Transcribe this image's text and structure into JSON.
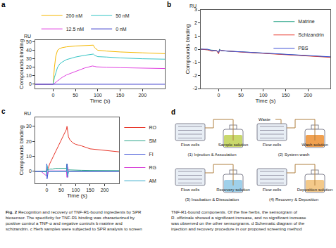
{
  "chart_data": [
    {
      "label": "a",
      "type": "line",
      "y_unit": "RU",
      "x_label": "Time (s)",
      "y_label": "Compounds binding",
      "x": [
        -40,
        -20,
        -2,
        0,
        3,
        6,
        10,
        15,
        20,
        30,
        50,
        70,
        88,
        90,
        93,
        97,
        100,
        120,
        150,
        200,
        250
      ],
      "series": [
        {
          "name": "200 nM",
          "color": "#f5b800",
          "values": [
            0,
            0,
            0,
            0,
            20,
            33,
            40,
            42,
            43,
            44,
            45,
            45.5,
            46,
            46,
            43,
            41,
            40,
            39,
            38,
            37,
            36
          ]
        },
        {
          "name": "50 nM",
          "color": "#33c4c4",
          "values": [
            0,
            0,
            0,
            0,
            8,
            14,
            20,
            24,
            26,
            29,
            32,
            34,
            35.5,
            35.5,
            34,
            33,
            32.5,
            32,
            31,
            30,
            29.5
          ]
        },
        {
          "name": "12.5 nM",
          "color": "#e040e0",
          "values": [
            0,
            0,
            0,
            0,
            1,
            2,
            4,
            6,
            8,
            11,
            15,
            19,
            21.5,
            21.5,
            21,
            20.5,
            20.5,
            20,
            19.5,
            19,
            18.5
          ]
        },
        {
          "name": "0 nM",
          "color": "#3b3bcc",
          "values": [
            0,
            0,
            0,
            0,
            0.3,
            0.3,
            0.5,
            0.5,
            0.5,
            0.5,
            0.5,
            0.5,
            0.5,
            0.5,
            0,
            0,
            0,
            0,
            0,
            0,
            0
          ]
        }
      ],
      "xlim": [
        -40,
        250
      ],
      "xticks": [
        0,
        50,
        100,
        150,
        200
      ],
      "ylim": [
        -5,
        52
      ],
      "yticks": [
        0,
        10,
        20,
        30,
        40,
        50
      ],
      "legend": "top"
    },
    {
      "label": "b",
      "type": "line",
      "y_unit": "RU",
      "x_label": "Time (s)",
      "y_label": "Compounds binding",
      "x": [
        -40,
        -25,
        -15,
        -5,
        0,
        2,
        5,
        20,
        50,
        100,
        150,
        200,
        250
      ],
      "series": [
        {
          "name": "Matrine",
          "color": "#2aa58a",
          "values": [
            0,
            -0.05,
            -0.1,
            -0.1,
            -0.3,
            0,
            -0.1,
            -0.15,
            -0.2,
            -0.3,
            -0.4,
            -0.5,
            -0.6
          ]
        },
        {
          "name": "Schizandrin",
          "color": "#e8362a",
          "values": [
            0,
            -0.05,
            -0.15,
            -0.1,
            -0.35,
            -0.05,
            -0.1,
            -0.15,
            -0.22,
            -0.32,
            -0.42,
            -0.52,
            -0.62
          ]
        },
        {
          "name": "PBS",
          "color": "#3b4fd6",
          "values": [
            0,
            0,
            -0.1,
            -0.1,
            -0.25,
            -0.05,
            -0.1,
            -0.15,
            -0.2,
            -0.3,
            -0.4,
            -0.48,
            -0.58
          ]
        }
      ],
      "xlim": [
        -40,
        250
      ],
      "xticks": [
        0,
        50,
        100,
        150,
        200
      ],
      "ylim": [
        -3,
        3
      ],
      "yticks": [
        -3,
        -2,
        -1,
        0,
        1,
        2,
        3
      ],
      "legend": "upper right"
    },
    {
      "label": "c",
      "type": "line",
      "y_unit": "RU",
      "x_label": "Time (s)",
      "y_label": "Compounds binding",
      "x": [
        -40,
        -20,
        -1,
        0,
        1,
        5,
        10,
        20,
        30,
        40,
        50,
        60,
        68,
        70,
        72,
        75,
        80,
        90,
        100,
        120,
        150,
        200,
        250
      ],
      "series": [
        {
          "name": "RO",
          "color": "#e8362a",
          "values": [
            0,
            0,
            0,
            0,
            0.5,
            2,
            5,
            9,
            13,
            17,
            21,
            25,
            28,
            30,
            27,
            23,
            21,
            19,
            18,
            17,
            15,
            14,
            13
          ]
        },
        {
          "name": "SM",
          "color": "#2aa58a",
          "values": [
            0,
            0,
            0,
            2,
            1,
            1,
            1.5,
            1.5,
            2,
            2,
            2,
            2,
            2,
            5,
            1,
            1,
            1,
            0.8,
            0.8,
            0.7,
            0.6,
            0.5,
            0.5
          ]
        },
        {
          "name": "FI",
          "color": "#3b4fd6",
          "values": [
            0,
            0,
            0,
            5,
            -5,
            0,
            0,
            0,
            0,
            0,
            0,
            0,
            0,
            5,
            -4,
            0,
            0,
            0,
            0,
            0,
            0,
            0,
            0
          ]
        },
        {
          "name": "RG",
          "color": "#d63ad6",
          "values": [
            0,
            0,
            -3,
            3,
            -2,
            0,
            0.3,
            0.3,
            0.3,
            0.3,
            0.3,
            0.3,
            0.3,
            -4,
            3,
            0.3,
            0,
            0,
            0,
            0,
            0,
            0,
            0
          ]
        },
        {
          "name": "AM",
          "color": "#2fa8c8",
          "values": [
            0,
            0,
            0,
            -3,
            4,
            0,
            0,
            0,
            0,
            0,
            0,
            0,
            0,
            3,
            -3,
            0,
            0,
            0,
            0,
            0,
            0,
            0,
            0
          ]
        }
      ],
      "xlim": [
        -40,
        250
      ],
      "xticks": [
        0,
        50,
        100,
        150,
        200
      ],
      "ylim": [
        -8,
        36
      ],
      "yticks": [
        0,
        10,
        20,
        30
      ],
      "legend": "right"
    }
  ],
  "diagram": {
    "label": "d",
    "steps": [
      {
        "title": "(1) Injection & Association",
        "cells": "Flow cells",
        "bottle": "Sample solution",
        "color": "#c9d86c"
      },
      {
        "title": "(2) System wash",
        "cells": "Flow cells",
        "bottle": "Wash solution",
        "waste": "Waste",
        "color": "#f0a050"
      },
      {
        "title": "(3) Incubation & Dissociation",
        "cells": "Flow cells",
        "bottle": "Recovery solution",
        "color": "#9fd0ea"
      },
      {
        "title": "(4) Recovery & Deposition",
        "cells": "Flow cells",
        "bottle": "Deposition solution",
        "color": "#f3c98a"
      }
    ]
  },
  "caption": {
    "figure": "Fig. 2",
    "columns": [
      [
        " Recognition and recovery of TNF-R1-bound ingredients by SPR",
        "biosensor. The specificity for TNF-R1 binding was characterized by",
        "positive control a TNF-α and negative controls b matrine and",
        "schizandrin. c Herb samples were subjected to SPR analysis to screen"
      ],
      [
        "TNF-R1-bound components. Of the five herbs, the sensorgram of",
        "R. officinale showed a significant increase, and no significant increase",
        "was observed on the other sensorgrams. d Schematic diagram of the",
        "injection and recovery procedure in our proposed screening method"
      ]
    ]
  }
}
